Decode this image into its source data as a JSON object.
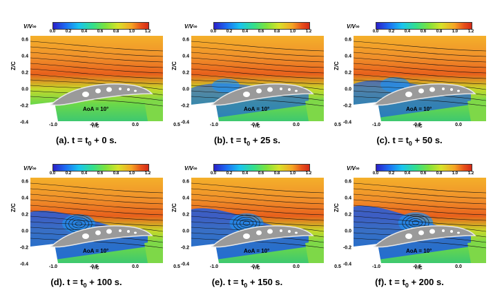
{
  "colorbar": {
    "title": "V/V∞",
    "ticks": [
      "0.0",
      "0.2",
      "0.4",
      "0.6",
      "0.8",
      "1.0",
      "1.2"
    ]
  },
  "axes": {
    "ylabel": "Z/C",
    "yticks": [
      "0.6",
      "0.4",
      "0.2",
      "0.0",
      "-0.2",
      "-0.4"
    ],
    "xlabel": "Y/C",
    "xticks": [
      "-1.0",
      "-0.5",
      "0.0",
      "0.5"
    ]
  },
  "annotation": "AoA = 10°",
  "panels": [
    {
      "label_pre": "(a). t = t",
      "sub": "0",
      "label_post": " + 0 s."
    },
    {
      "label_pre": "(b). t = t",
      "sub": "0",
      "label_post": " + 25 s."
    },
    {
      "label_pre": "(c). t = t",
      "sub": "0",
      "label_post": " + 50 s."
    },
    {
      "label_pre": "(d). t = t",
      "sub": "0",
      "label_post": " + 100 s."
    },
    {
      "label_pre": "(e). t = t",
      "sub": "0",
      "label_post": " + 150 s."
    },
    {
      "label_pre": "(f). t = t",
      "sub": "0",
      "label_post": " + 200 s."
    }
  ]
}
